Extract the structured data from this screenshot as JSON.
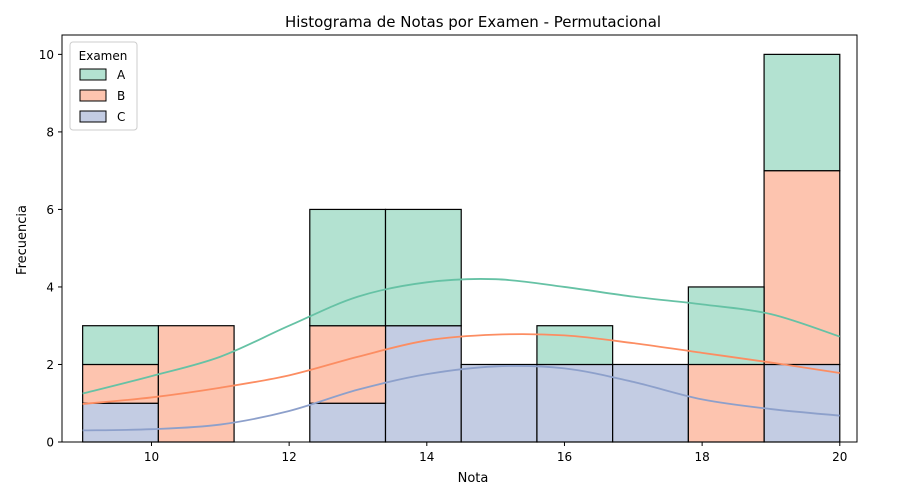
{
  "chart_data": {
    "type": "bar",
    "subtype": "stacked-histogram-with-kde",
    "title": "Histograma de Notas por Examen - Permutacional",
    "xlabel": "Nota",
    "ylabel": "Frecuencia",
    "xlim": [
      8.7,
      20.25
    ],
    "ylim": [
      0,
      10.5
    ],
    "x_ticks": [
      10,
      12,
      14,
      16,
      18,
      20
    ],
    "y_ticks": [
      0,
      2,
      4,
      6,
      8,
      10
    ],
    "bin_edges": [
      9.0,
      10.1,
      11.2,
      12.3,
      13.4,
      14.5,
      15.6,
      16.7,
      17.8,
      18.9,
      20.0
    ],
    "legend": {
      "title": "Examen",
      "position": "top-left"
    },
    "series": [
      {
        "name": "C",
        "color": "#c3cce3",
        "kde_color": "#8da0cb",
        "counts": [
          1,
          0,
          0,
          1,
          3,
          2,
          2,
          2,
          0,
          2
        ],
        "kde": [
          [
            9,
            0.3
          ],
          [
            10,
            0.33
          ],
          [
            11,
            0.45
          ],
          [
            12,
            0.8
          ],
          [
            13,
            1.35
          ],
          [
            14,
            1.75
          ],
          [
            15,
            1.95
          ],
          [
            16,
            1.9
          ],
          [
            17,
            1.55
          ],
          [
            18,
            1.1
          ],
          [
            19,
            0.85
          ],
          [
            20,
            0.68
          ]
        ]
      },
      {
        "name": "B",
        "color": "#fdc4af",
        "kde_color": "#fc8d62",
        "counts": [
          1,
          3,
          0,
          2,
          0,
          0,
          0,
          0,
          2,
          5
        ],
        "kde": [
          [
            9,
            0.98
          ],
          [
            10,
            1.15
          ],
          [
            11,
            1.4
          ],
          [
            12,
            1.72
          ],
          [
            13,
            2.2
          ],
          [
            14,
            2.62
          ],
          [
            15,
            2.77
          ],
          [
            16,
            2.75
          ],
          [
            17,
            2.55
          ],
          [
            18,
            2.3
          ],
          [
            19,
            2.05
          ],
          [
            20,
            1.78
          ]
        ]
      },
      {
        "name": "A",
        "color": "#b3e2d1",
        "kde_color": "#66c2a5",
        "counts": [
          1,
          0,
          0,
          3,
          3,
          0,
          1,
          0,
          2,
          3
        ],
        "kde": [
          [
            9,
            1.25
          ],
          [
            10,
            1.7
          ],
          [
            11,
            2.2
          ],
          [
            12,
            3.0
          ],
          [
            13,
            3.75
          ],
          [
            14,
            4.12
          ],
          [
            15,
            4.2
          ],
          [
            16,
            4.0
          ],
          [
            17,
            3.75
          ],
          [
            18,
            3.55
          ],
          [
            19,
            3.3
          ],
          [
            20,
            2.72
          ]
        ]
      }
    ]
  }
}
